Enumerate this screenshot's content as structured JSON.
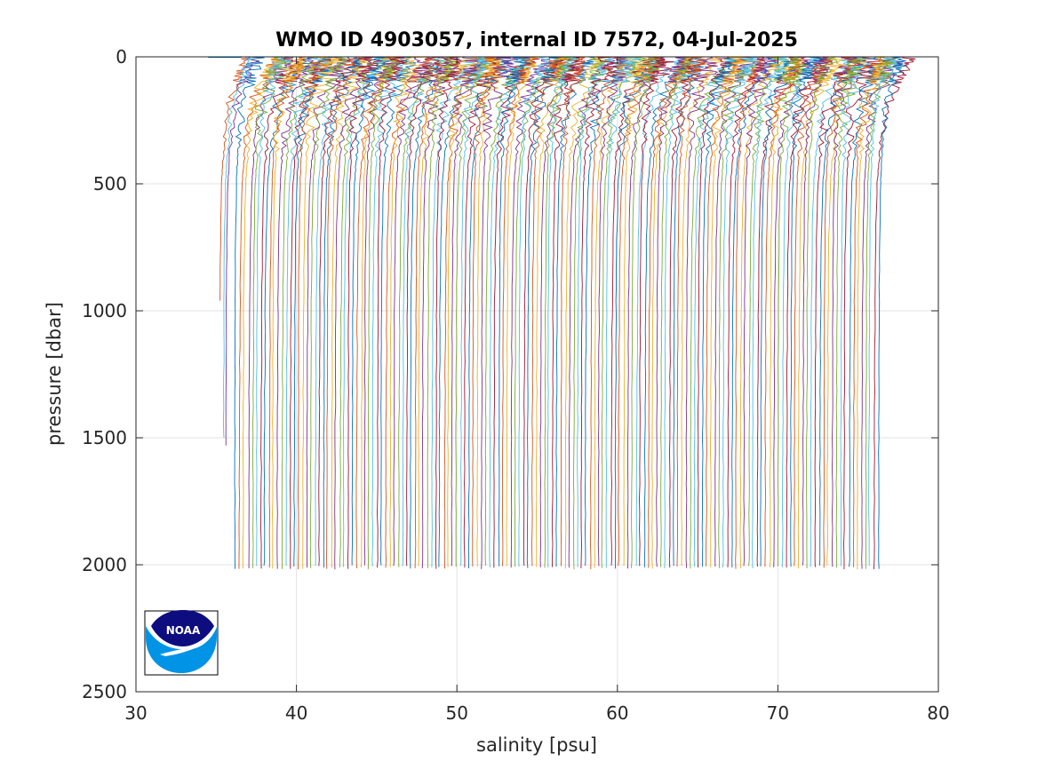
{
  "chart_data": {
    "type": "line",
    "title": "WMO ID 4903057, internal ID 7572, 04-Jul-2025",
    "xlabel": "salinity [psu]",
    "ylabel": "pressure [dbar]",
    "xlim": [
      30,
      80
    ],
    "ylim": [
      0,
      2500
    ],
    "y_reversed": true,
    "xticks": [
      30,
      40,
      50,
      60,
      70,
      80
    ],
    "yticks": [
      0,
      500,
      1000,
      1500,
      2000,
      2500
    ],
    "grid": true,
    "legend": "none",
    "series_colors": [
      "#0072BD",
      "#D95319",
      "#EDB120",
      "#7E2F8E",
      "#77AC30",
      "#4DBEEE",
      "#A2142F"
    ],
    "description": "Waterfall of salinity profiles; each successive profile offset by a constant in salinity.",
    "profile_count": 155,
    "first_offset_start": 36.2,
    "offset_step": 0.26,
    "deep_pressure_dbar": 2010,
    "representative_profile": {
      "pressure": [
        0,
        20,
        50,
        100,
        150,
        200,
        300,
        400,
        500,
        700,
        1000,
        1500,
        2010
      ],
      "salinity_anomaly": [
        1.8,
        1.9,
        1.6,
        1.2,
        0.9,
        0.6,
        0.4,
        0.25,
        0.15,
        0.08,
        0.04,
        0.01,
        0.0
      ]
    },
    "short_profiles": [
      {
        "start": 35.2,
        "max_pressure": 960
      },
      {
        "start": 35.6,
        "max_pressure": 1530
      },
      {
        "start": 35.45,
        "max_pressure": 1500
      }
    ]
  },
  "logo": {
    "text": "NOAA",
    "colors": {
      "dark": "#0D0D80",
      "light": "#0093E6"
    }
  }
}
